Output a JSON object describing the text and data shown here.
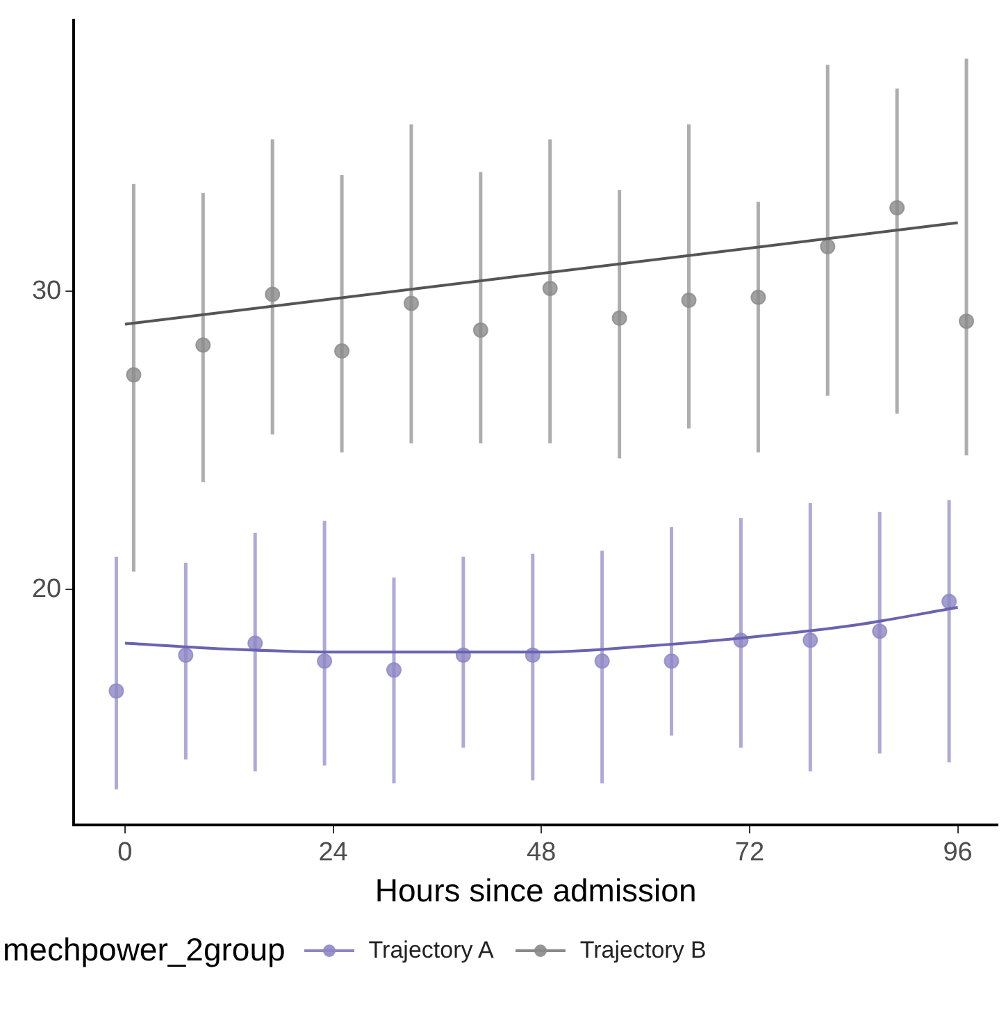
{
  "chart_data": {
    "type": "scatter",
    "xlabel": "Hours since admission",
    "legend_title": "mechpower_2group",
    "legend": "bottom",
    "grid": false,
    "xlim": [
      -5.9,
      100.6
    ],
    "xticks": [
      0,
      24,
      48,
      72,
      96
    ],
    "ylim": [
      12.1,
      39.1
    ],
    "yticks": [
      20,
      30
    ],
    "series": [
      {
        "name": "Trajectory A",
        "marker": "circle",
        "color": "#8c86c4",
        "x": [
          -1,
          7,
          15,
          23,
          31,
          39,
          47,
          55,
          63,
          71,
          79,
          87,
          95
        ],
        "values": [
          16.6,
          17.8,
          18.2,
          17.6,
          17.3,
          17.8,
          17.8,
          17.6,
          17.6,
          18.3,
          18.3,
          18.6,
          19.6
        ],
        "errors": [
          [
            13.3,
            21.1
          ],
          [
            14.3,
            20.9
          ],
          [
            13.9,
            21.9
          ],
          [
            14.1,
            22.3
          ],
          [
            13.5,
            20.4
          ],
          [
            14.7,
            21.1
          ],
          [
            13.6,
            21.2
          ],
          [
            13.5,
            21.3
          ],
          [
            15.1,
            22.1
          ],
          [
            14.7,
            22.4
          ],
          [
            13.9,
            22.9
          ],
          [
            14.5,
            22.6
          ],
          [
            14.2,
            23.0
          ]
        ]
      },
      {
        "name": "Trajectory B",
        "marker": "circle",
        "color": "#8a8a8a",
        "x": [
          1,
          9,
          17,
          25,
          33,
          41,
          49,
          57,
          65,
          73,
          81,
          89,
          97
        ],
        "values": [
          27.2,
          28.2,
          29.9,
          28.0,
          29.6,
          28.7,
          30.1,
          29.1,
          29.7,
          29.8,
          31.5,
          32.8,
          29.0
        ],
        "errors": [
          [
            20.6,
            33.6
          ],
          [
            23.6,
            33.3
          ],
          [
            25.2,
            35.1
          ],
          [
            24.6,
            33.9
          ],
          [
            24.9,
            35.6
          ],
          [
            24.9,
            34.0
          ],
          [
            24.9,
            35.1
          ],
          [
            24.4,
            33.4
          ],
          [
            25.4,
            35.6
          ],
          [
            24.6,
            33.0
          ],
          [
            26.5,
            37.6
          ],
          [
            25.9,
            36.8
          ],
          [
            24.5,
            37.8
          ]
        ]
      },
      {
        "type": "line",
        "marker": "none",
        "color": "#6a63b0",
        "x": [
          0,
          12,
          24,
          36,
          48,
          60,
          72,
          84,
          96
        ],
        "values": [
          18.2,
          18.0,
          17.9,
          17.9,
          17.9,
          18.1,
          18.4,
          18.8,
          19.4
        ]
      },
      {
        "type": "line",
        "marker": "none",
        "color": "#555555",
        "x": [
          0,
          96
        ],
        "values": [
          28.9,
          32.3
        ]
      }
    ]
  }
}
